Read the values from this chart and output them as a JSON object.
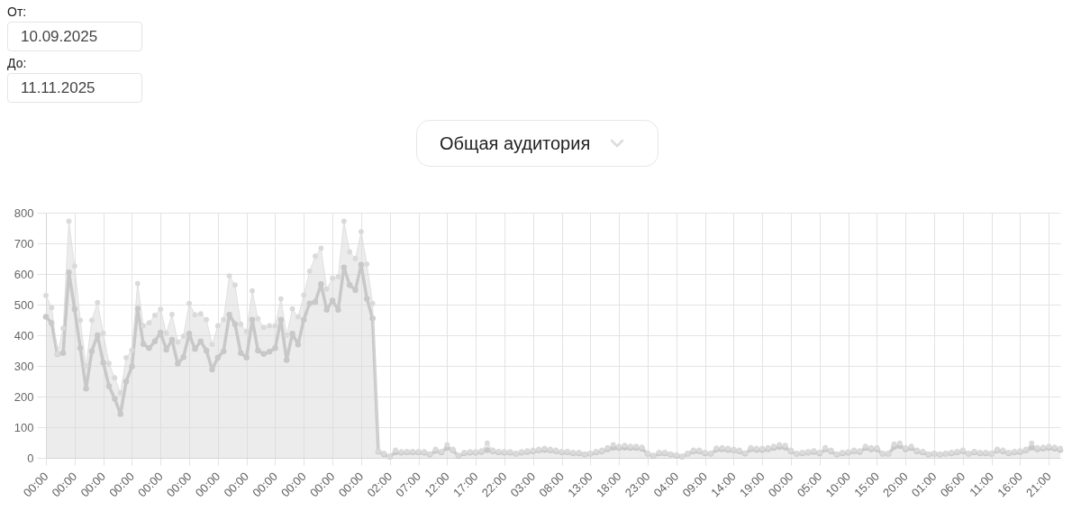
{
  "chart_data": {
    "type": "line",
    "annotations": [
      "От:",
      "10.09.2025",
      "До:",
      "11.11.2025",
      "Общая аудитория"
    ],
    "categories": [
      "00:00",
      null,
      null,
      null,
      null,
      "00:00",
      null,
      null,
      null,
      null,
      "00:00",
      null,
      null,
      null,
      null,
      "00:00",
      null,
      null,
      null,
      null,
      "00:00",
      null,
      null,
      null,
      null,
      "00:00",
      null,
      null,
      null,
      null,
      "00:00",
      null,
      null,
      null,
      null,
      "00:00",
      null,
      null,
      null,
      null,
      "00:00",
      null,
      null,
      null,
      null,
      "00:00",
      null,
      null,
      null,
      null,
      "00:00",
      null,
      null,
      null,
      null,
      "00:00",
      null,
      null,
      null,
      null,
      "02:00",
      null,
      null,
      null,
      null,
      "07:00",
      null,
      null,
      null,
      null,
      "12:00",
      null,
      null,
      null,
      null,
      "17:00",
      null,
      null,
      null,
      null,
      "22:00",
      null,
      null,
      null,
      null,
      "03:00",
      null,
      null,
      null,
      null,
      "08:00",
      null,
      null,
      null,
      null,
      "13:00",
      null,
      null,
      null,
      null,
      "18:00",
      null,
      null,
      null,
      null,
      "23:00",
      null,
      null,
      null,
      null,
      "04:00",
      null,
      null,
      null,
      null,
      "09:00",
      null,
      null,
      null,
      null,
      "14:00",
      null,
      null,
      null,
      null,
      "19:00",
      null,
      null,
      null,
      null,
      "00:00",
      null,
      null,
      null,
      null,
      "05:00",
      null,
      null,
      null,
      null,
      "10:00",
      null,
      null,
      null,
      null,
      "15:00",
      null,
      null,
      null,
      null,
      "20:00",
      null,
      null,
      null,
      null,
      "01:00",
      null,
      null,
      null,
      null,
      "06:00",
      null,
      null,
      null,
      null,
      "11:00",
      null,
      null,
      null,
      null,
      "16:00",
      null,
      null,
      null,
      null,
      "21:00",
      null,
      null
    ],
    "series": [
      {
        "type": "area",
        "color": "#dadada",
        "values": [
          530,
          490,
          340,
          423,
          772,
          626,
          449,
          300,
          449,
          507,
          407,
          308,
          261,
          212,
          327,
          351,
          569,
          431,
          441,
          465,
          485,
          407,
          468,
          378,
          397,
          504,
          467,
          470,
          451,
          370,
          431,
          451,
          594,
          564,
          436,
          412,
          545,
          454,
          426,
          431,
          431,
          519,
          400,
          486,
          460,
          531,
          609,
          658,
          684,
          551,
          586,
          591,
          772,
          672,
          650,
          738,
          632,
          504,
          21,
          15,
          5,
          25,
          20,
          21,
          21,
          21,
          20,
          13,
          28,
          21,
          43,
          28,
          8,
          18,
          20,
          20,
          23,
          48,
          25,
          21,
          20,
          20,
          15,
          20,
          23,
          25,
          28,
          31,
          28,
          25,
          21,
          21,
          18,
          18,
          13,
          15,
          21,
          25,
          33,
          43,
          38,
          41,
          38,
          38,
          35,
          15,
          8,
          18,
          18,
          13,
          10,
          5,
          15,
          25,
          25,
          18,
          15,
          32,
          33,
          31,
          28,
          25,
          16,
          33,
          31,
          31,
          33,
          38,
          43,
          41,
          25,
          15,
          18,
          20,
          23,
          18,
          33,
          25,
          13,
          18,
          20,
          25,
          23,
          38,
          33,
          33,
          15,
          15,
          45,
          48,
          33,
          38,
          25,
          21,
          13,
          15,
          13,
          15,
          18,
          21,
          25,
          15,
          21,
          18,
          18,
          15,
          28,
          25,
          18,
          21,
          23,
          28,
          48,
          33,
          35,
          38,
          35,
          31
        ]
      },
      {
        "color": "#c8c8c8",
        "values": [
          460,
          440,
          338,
          342,
          605,
          485,
          358,
          226,
          348,
          400,
          310,
          234,
          193,
          143,
          249,
          298,
          487,
          371,
          358,
          380,
          409,
          353,
          385,
          307,
          329,
          405,
          355,
          380,
          350,
          288,
          327,
          348,
          467,
          436,
          342,
          327,
          451,
          350,
          339,
          346,
          358,
          451,
          319,
          405,
          370,
          451,
          504,
          509,
          567,
          483,
          513,
          483,
          621,
          564,
          547,
          630,
          519,
          455,
          20,
          12,
          4,
          18,
          17,
          18,
          18,
          18,
          17,
          11,
          23,
          18,
          33,
          25,
          6,
          15,
          17,
          17,
          19,
          25,
          21,
          18,
          17,
          17,
          13,
          17,
          19,
          21,
          24,
          26,
          24,
          21,
          18,
          18,
          15,
          15,
          11,
          13,
          18,
          21,
          28,
          33,
          32,
          33,
          32,
          32,
          30,
          13,
          6,
          15,
          15,
          11,
          8,
          4,
          13,
          21,
          21,
          15,
          13,
          27,
          28,
          26,
          24,
          21,
          14,
          28,
          26,
          26,
          28,
          32,
          35,
          34,
          21,
          13,
          15,
          17,
          19,
          15,
          28,
          21,
          11,
          15,
          17,
          21,
          19,
          32,
          28,
          28,
          13,
          13,
          35,
          38,
          28,
          32,
          21,
          18,
          11,
          13,
          11,
          13,
          15,
          18,
          21,
          13,
          18,
          15,
          15,
          13,
          24,
          21,
          15,
          18,
          19,
          24,
          33,
          28,
          30,
          32,
          30,
          26
        ]
      }
    ],
    "ylim": [
      0,
      800
    ],
    "yticks": [
      0,
      100,
      200,
      300,
      400,
      500,
      600,
      700,
      800
    ],
    "grid": true,
    "marker": "circle"
  }
}
